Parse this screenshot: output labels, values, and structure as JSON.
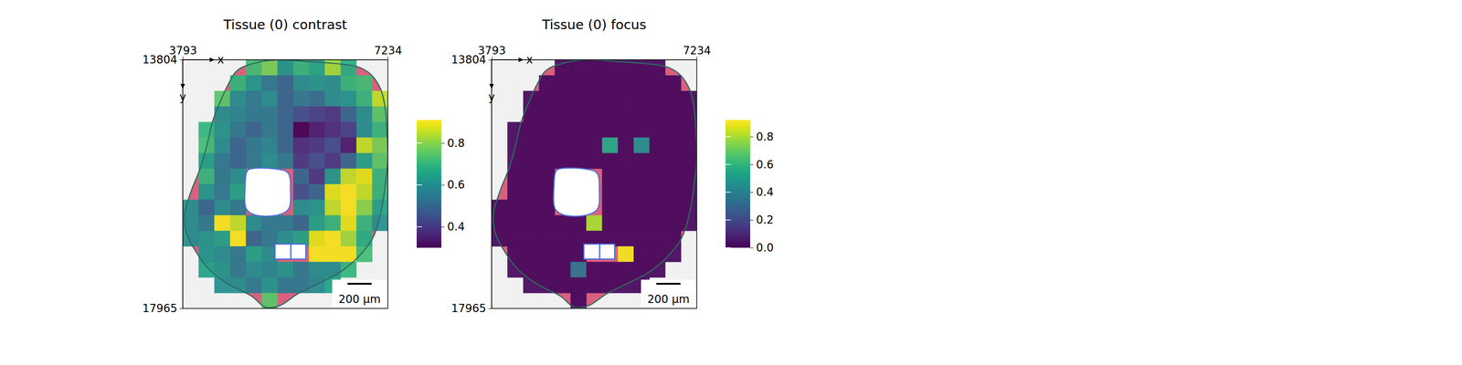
{
  "chart_data": [
    {
      "type": "heatmap",
      "title": "Tissue (0) contrast",
      "xlabel": "x",
      "ylabel": "y",
      "xlim": [
        3793,
        7234
      ],
      "ylim": [
        13804,
        17965
      ],
      "xticks": [
        3793,
        7234
      ],
      "yticks": [
        13804,
        17965
      ],
      "color": "viridis",
      "colorbar": {
        "range": [
          0.3,
          0.91
        ],
        "ticks": [
          0.4,
          0.6,
          0.8
        ]
      },
      "cells": {
        "x_start": 3793,
        "y_start": 13804,
        "dx": 264.7,
        "dy": 260.1,
        "values": [
          [
            null,
            null,
            null,
            null,
            0.72,
            0.78,
            0.62,
            0.7,
            0.66,
            0.82,
            0.68,
            null,
            null
          ],
          [
            null,
            null,
            null,
            0.7,
            0.62,
            0.55,
            0.5,
            0.6,
            0.62,
            0.6,
            0.7,
            0.72,
            null
          ],
          [
            null,
            null,
            0.75,
            0.6,
            0.55,
            0.6,
            0.5,
            0.55,
            0.52,
            0.6,
            0.62,
            0.7,
            0.85
          ],
          [
            null,
            null,
            0.6,
            0.58,
            0.55,
            0.55,
            0.5,
            0.45,
            0.42,
            0.4,
            0.5,
            0.6,
            0.75
          ],
          [
            null,
            0.7,
            0.62,
            0.55,
            0.5,
            0.55,
            0.5,
            0.3,
            0.35,
            0.38,
            0.42,
            0.6,
            0.7
          ],
          [
            null,
            0.72,
            0.6,
            0.5,
            0.55,
            0.58,
            0.5,
            0.38,
            0.4,
            0.45,
            0.35,
            0.85,
            0.78
          ],
          [
            null,
            0.65,
            0.55,
            0.5,
            0.55,
            0.6,
            0.55,
            0.4,
            0.45,
            0.4,
            0.5,
            0.65,
            0.75
          ],
          [
            null,
            0.7,
            0.55,
            0.6,
            null,
            null,
            null,
            0.5,
            0.4,
            0.62,
            0.85,
            0.88,
            0.7
          ],
          [
            null,
            0.62,
            0.55,
            0.65,
            null,
            null,
            null,
            0.45,
            0.5,
            0.88,
            0.9,
            0.85,
            0.7
          ],
          [
            0.6,
            0.5,
            0.6,
            0.55,
            null,
            null,
            null,
            0.6,
            0.62,
            0.85,
            0.9,
            0.8,
            0.65
          ],
          [
            0.6,
            0.55,
            0.9,
            0.85,
            0.6,
            0.55,
            0.55,
            0.5,
            0.65,
            0.7,
            0.88,
            0.7,
            0.6
          ],
          [
            0.6,
            0.62,
            0.65,
            0.9,
            0.5,
            0.55,
            0.6,
            0.65,
            0.88,
            0.9,
            0.82,
            0.68,
            null
          ],
          [
            null,
            0.62,
            0.6,
            0.55,
            0.65,
            0.6,
            null,
            null,
            0.9,
            0.9,
            0.9,
            0.72,
            null
          ],
          [
            null,
            0.65,
            0.62,
            0.55,
            0.6,
            0.58,
            0.62,
            0.55,
            0.6,
            0.6,
            0.7,
            null,
            null
          ],
          [
            null,
            null,
            0.6,
            0.6,
            0.55,
            0.62,
            0.55,
            0.55,
            0.58,
            0.65,
            null,
            null,
            null
          ],
          [
            null,
            null,
            null,
            null,
            null,
            0.75,
            null,
            null,
            null,
            null,
            null,
            null,
            null
          ]
        ]
      },
      "contour": [
        [
          4716,
          13975
        ],
        [
          5107,
          13835
        ],
        [
          5420,
          13804
        ],
        [
          5889,
          13835
        ],
        [
          6358,
          13866
        ],
        [
          6749,
          13929
        ],
        [
          6952,
          14053
        ],
        [
          7109,
          14287
        ],
        [
          7187,
          14599
        ],
        [
          7218,
          14988
        ],
        [
          7234,
          15455
        ],
        [
          7187,
          15923
        ],
        [
          7109,
          16390
        ],
        [
          6984,
          16780
        ],
        [
          6749,
          17091
        ],
        [
          6436,
          17356
        ],
        [
          6045,
          17559
        ],
        [
          5732,
          17715
        ],
        [
          5420,
          17917
        ],
        [
          5185,
          17948
        ],
        [
          4950,
          17761
        ],
        [
          4559,
          17559
        ],
        [
          4247,
          17325
        ],
        [
          4012,
          17013
        ],
        [
          3856,
          16702
        ],
        [
          3824,
          16390
        ],
        [
          3934,
          16001
        ],
        [
          4090,
          15611
        ],
        [
          4200,
          15222
        ],
        [
          4294,
          14832
        ],
        [
          4403,
          14552
        ],
        [
          4559,
          14209
        ]
      ],
      "holes": [
        [
          [
            4900,
            15640
          ],
          [
            5350,
            15630
          ],
          [
            5560,
            15700
          ],
          [
            5600,
            16000
          ],
          [
            5570,
            16300
          ],
          [
            5400,
            16400
          ],
          [
            5000,
            16400
          ],
          [
            4860,
            16300
          ],
          [
            4840,
            15900
          ],
          [
            4860,
            15700
          ]
        ],
        [
          [
            5341,
            16889
          ],
          [
            5607,
            16889
          ],
          [
            5607,
            17138
          ],
          [
            5341,
            17138
          ]
        ],
        [
          [
            5607,
            16889
          ],
          [
            5857,
            16889
          ],
          [
            5857,
            17138
          ],
          [
            5607,
            17138
          ]
        ]
      ],
      "scale_bar": {
        "label": "200 µm",
        "length": 407
      }
    },
    {
      "type": "heatmap",
      "title": "Tissue (0) focus",
      "xlabel": "x",
      "ylabel": "y",
      "xlim": [
        3793,
        7234
      ],
      "ylim": [
        13804,
        17965
      ],
      "xticks": [
        3793,
        7234
      ],
      "yticks": [
        13804,
        17965
      ],
      "color": "viridis",
      "colorbar": {
        "range": [
          0,
          0.92
        ],
        "ticks": [
          {
            "value": 0,
            "label": "0.0"
          },
          0.2,
          0.4,
          0.6,
          0.8
        ]
      },
      "cells": {
        "x_start": 3793,
        "y_start": 13804,
        "dx": 264.7,
        "dy": 260.1,
        "values": [
          [
            null,
            null,
            null,
            null,
            0.02,
            0.02,
            0.02,
            0.02,
            0.02,
            0.02,
            0.02,
            null,
            null
          ],
          [
            null,
            null,
            null,
            0.02,
            0.02,
            0.02,
            0.02,
            0.02,
            0.02,
            0.02,
            0.02,
            0.02,
            null
          ],
          [
            null,
            null,
            0.02,
            0.02,
            0.02,
            0.02,
            0.02,
            0.02,
            0.02,
            0.02,
            0.02,
            0.02,
            0.02
          ],
          [
            null,
            null,
            0.02,
            0.02,
            0.02,
            0.02,
            0.02,
            0.02,
            0.02,
            0.02,
            0.02,
            0.02,
            0.02
          ],
          [
            null,
            0.02,
            0.02,
            0.02,
            0.02,
            0.02,
            0.02,
            0.02,
            0.02,
            0.02,
            0.02,
            0.02,
            0.02
          ],
          [
            null,
            0.02,
            0.02,
            0.02,
            0.02,
            0.02,
            0.02,
            0.55,
            0.02,
            0.45,
            0.02,
            0.02,
            0.02
          ],
          [
            null,
            0.02,
            0.02,
            0.02,
            0.02,
            0.02,
            0.02,
            0.02,
            0.02,
            0.02,
            0.02,
            0.02,
            0.02
          ],
          [
            null,
            0.02,
            0.02,
            0.02,
            null,
            null,
            null,
            0.02,
            0.02,
            0.02,
            0.02,
            0.02,
            0.02
          ],
          [
            null,
            0.02,
            0.02,
            0.02,
            null,
            null,
            null,
            0.02,
            0.02,
            0.02,
            0.02,
            0.02,
            0.02
          ],
          [
            0.02,
            0.02,
            0.02,
            0.02,
            null,
            null,
            null,
            0.02,
            0.02,
            0.02,
            0.02,
            0.02,
            0.02
          ],
          [
            0.02,
            0.02,
            0.02,
            0.02,
            0.02,
            0.02,
            0.8,
            0.02,
            0.02,
            0.02,
            0.02,
            0.02,
            0.02
          ],
          [
            0.02,
            0.02,
            0.02,
            0.02,
            0.02,
            0.02,
            0.02,
            0.02,
            0.02,
            0.02,
            0.02,
            0.02,
            null
          ],
          [
            null,
            0.02,
            0.02,
            0.02,
            0.02,
            0.02,
            null,
            null,
            0.9,
            0.02,
            0.02,
            0.02,
            null
          ],
          [
            null,
            0.02,
            0.02,
            0.02,
            0.02,
            0.35,
            0.02,
            0.02,
            0.02,
            0.02,
            0.02,
            null,
            null
          ],
          [
            null,
            null,
            0.02,
            0.02,
            0.02,
            0.02,
            0.02,
            0.02,
            0.02,
            0.02,
            null,
            null,
            null
          ],
          [
            null,
            null,
            null,
            null,
            null,
            0.02,
            null,
            null,
            null,
            null,
            null,
            null,
            null
          ]
        ]
      },
      "contour": [
        [
          4716,
          13975
        ],
        [
          5107,
          13835
        ],
        [
          5420,
          13804
        ],
        [
          5889,
          13835
        ],
        [
          6358,
          13866
        ],
        [
          6749,
          13929
        ],
        [
          6952,
          14053
        ],
        [
          7109,
          14287
        ],
        [
          7187,
          14599
        ],
        [
          7218,
          14988
        ],
        [
          7234,
          15455
        ],
        [
          7187,
          15923
        ],
        [
          7109,
          16390
        ],
        [
          6984,
          16780
        ],
        [
          6749,
          17091
        ],
        [
          6436,
          17356
        ],
        [
          6045,
          17559
        ],
        [
          5732,
          17715
        ],
        [
          5420,
          17917
        ],
        [
          5185,
          17948
        ],
        [
          4950,
          17761
        ],
        [
          4559,
          17559
        ],
        [
          4247,
          17325
        ],
        [
          4012,
          17013
        ],
        [
          3856,
          16702
        ],
        [
          3824,
          16390
        ],
        [
          3934,
          16001
        ],
        [
          4090,
          15611
        ],
        [
          4200,
          15222
        ],
        [
          4294,
          14832
        ],
        [
          4403,
          14552
        ],
        [
          4559,
          14209
        ]
      ],
      "holes": [
        [
          [
            4900,
            15640
          ],
          [
            5350,
            15630
          ],
          [
            5560,
            15700
          ],
          [
            5600,
            16000
          ],
          [
            5570,
            16300
          ],
          [
            5400,
            16400
          ],
          [
            5000,
            16400
          ],
          [
            4860,
            16300
          ],
          [
            4840,
            15900
          ],
          [
            4860,
            15700
          ]
        ],
        [
          [
            5341,
            16889
          ],
          [
            5607,
            16889
          ],
          [
            5607,
            17138
          ],
          [
            5341,
            17138
          ]
        ],
        [
          [
            5607,
            16889
          ],
          [
            5857,
            16889
          ],
          [
            5857,
            17138
          ],
          [
            5607,
            17138
          ]
        ]
      ],
      "scale_bar": {
        "label": "200 µm",
        "length": 407
      }
    }
  ]
}
